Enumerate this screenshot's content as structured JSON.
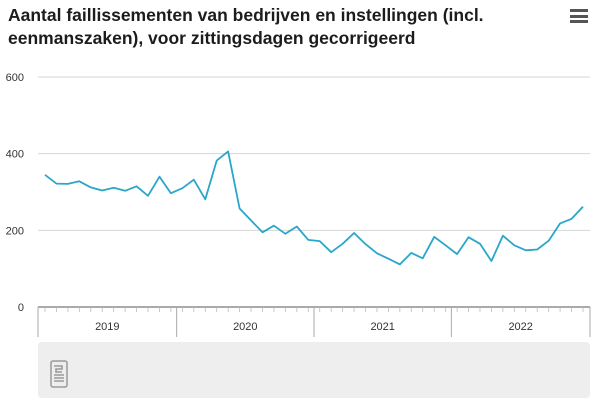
{
  "title": "Aantal faillissementen van bedrijven en instellingen (incl. eenmanszaken), voor zittingsdagen gecorrigeerd",
  "menu_icon": "hamburger-menu-icon",
  "logo_icon": "cbs-logo-icon",
  "colors": {
    "line": "#2aa6c9",
    "grid": "#d6d6d6",
    "axis": "#777777",
    "footer": "#eeeeee"
  },
  "chart_data": {
    "type": "line",
    "title": "Aantal faillissementen van bedrijven en instellingen (incl. eenmanszaken), voor zittingsdagen gecorrigeerd",
    "xlabel": "",
    "ylabel": "",
    "ylim": [
      0,
      600
    ],
    "yticks": [
      "0",
      "200",
      "400",
      "600"
    ],
    "year_labels": [
      "2019",
      "2020",
      "2021",
      "2022"
    ],
    "grid": "horizontal",
    "series": [
      {
        "values": [
          345,
          322,
          321,
          328,
          312,
          304,
          311,
          303,
          315,
          290,
          340,
          297,
          310,
          332,
          281,
          382,
          406,
          257,
          226,
          195,
          212,
          191,
          210,
          175,
          172,
          143,
          165,
          193,
          164,
          140,
          126,
          111,
          141,
          127,
          183,
          161,
          138,
          182,
          165,
          120,
          186,
          161,
          148,
          150,
          173,
          218,
          230,
          262
        ]
      }
    ]
  }
}
